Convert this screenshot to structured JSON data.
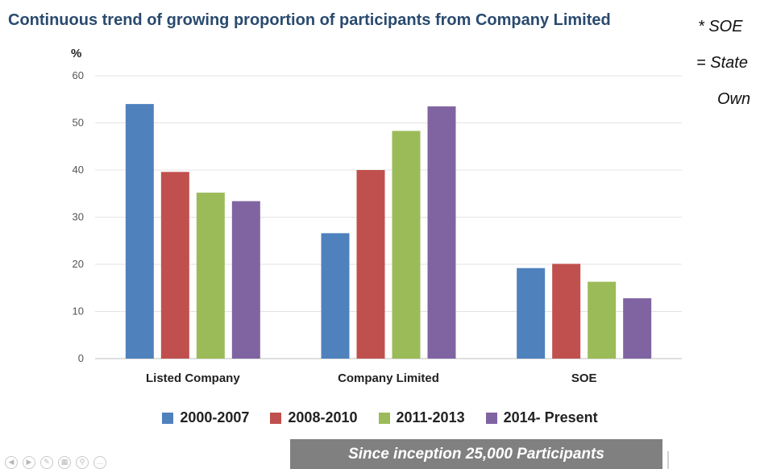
{
  "notes": [
    "*  SOE",
    "= State",
    "Own"
  ],
  "banner": {
    "text": "Since inception 25,000 Participants"
  },
  "toolbar": {
    "icons": [
      "previous-slide-icon",
      "next-slide-icon",
      "pen-icon",
      "slides-grid-icon",
      "zoom-icon",
      "more-icon"
    ]
  },
  "chart_data": {
    "type": "bar",
    "title": "Continuous trend of growing proportion of participants from Company Limited",
    "ylabel": "%",
    "xlabel": "",
    "ylim": [
      0,
      60
    ],
    "yticks": [
      0,
      10,
      20,
      30,
      40,
      50,
      60
    ],
    "grid": true,
    "legend": "bottom",
    "categories": [
      "Listed Company",
      "Company Limited",
      "SOE"
    ],
    "series": [
      {
        "name": "2000-2007",
        "color": "#4f81bd",
        "values": [
          54,
          26.6,
          19.2
        ]
      },
      {
        "name": "2008-2010",
        "color": "#c0504d",
        "values": [
          39.6,
          40,
          20.1
        ]
      },
      {
        "name": "2011-2013",
        "color": "#9bbb59",
        "values": [
          35.2,
          48.3,
          16.3
        ]
      },
      {
        "name": "2014- Present",
        "color": "#8064a2",
        "values": [
          33.4,
          53.5,
          12.8
        ]
      }
    ]
  }
}
